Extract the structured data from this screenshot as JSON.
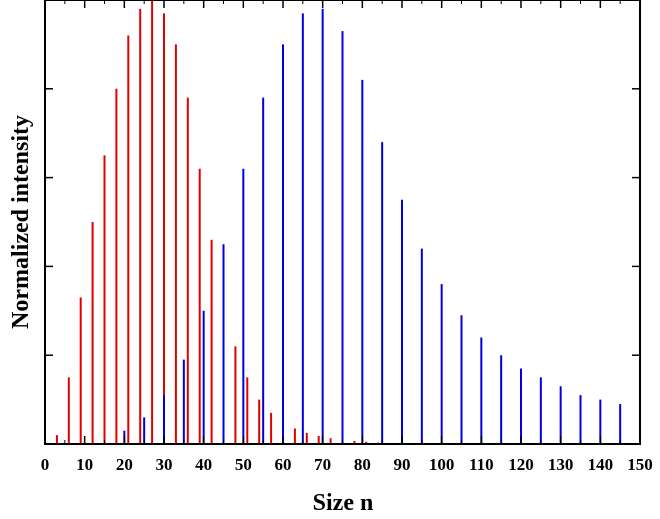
{
  "chart_data": {
    "type": "bar",
    "title": "",
    "xlabel": "Size n",
    "ylabel": "Normalized intensity",
    "xlim": [
      0,
      150
    ],
    "ylim": [
      0,
      1.0
    ],
    "x_ticks": [
      "0",
      "10",
      "20",
      "30",
      "40",
      "50",
      "60",
      "70",
      "80",
      "90",
      "100",
      "110",
      "120",
      "130",
      "140",
      "150"
    ],
    "y_ticks_labeled": false,
    "y_minor_ticks": [
      0.2,
      0.4,
      0.6,
      0.8
    ],
    "grid": false,
    "legend": "none",
    "annotations": [],
    "series": [
      {
        "color": "#e00000",
        "x": [
          3,
          6,
          9,
          12,
          15,
          18,
          21,
          24,
          27,
          30,
          33,
          36,
          39,
          42,
          45,
          48,
          51,
          54,
          57,
          60,
          63,
          66,
          69,
          72,
          75,
          78,
          81,
          84,
          87,
          90
        ],
        "values": [
          0.02,
          0.15,
          0.33,
          0.5,
          0.65,
          0.8,
          0.92,
          0.98,
          1.0,
          0.97,
          0.9,
          0.78,
          0.62,
          0.46,
          0.32,
          0.22,
          0.15,
          0.1,
          0.07,
          0.05,
          0.035,
          0.025,
          0.018,
          0.013,
          0.009,
          0.007,
          0.005,
          0.003,
          0.002,
          0.001
        ]
      },
      {
        "color": "#0000e0",
        "x": [
          20,
          25,
          30,
          35,
          40,
          45,
          50,
          55,
          60,
          65,
          70,
          75,
          80,
          85,
          90,
          95,
          100,
          105,
          110,
          115,
          120,
          125,
          130,
          135,
          140,
          145,
          150
        ],
        "values": [
          0.03,
          0.06,
          0.11,
          0.19,
          0.3,
          0.45,
          0.62,
          0.78,
          0.9,
          0.97,
          0.98,
          0.93,
          0.82,
          0.68,
          0.55,
          0.44,
          0.36,
          0.29,
          0.24,
          0.2,
          0.17,
          0.15,
          0.13,
          0.11,
          0.1,
          0.09,
          0.08
        ]
      }
    ]
  }
}
